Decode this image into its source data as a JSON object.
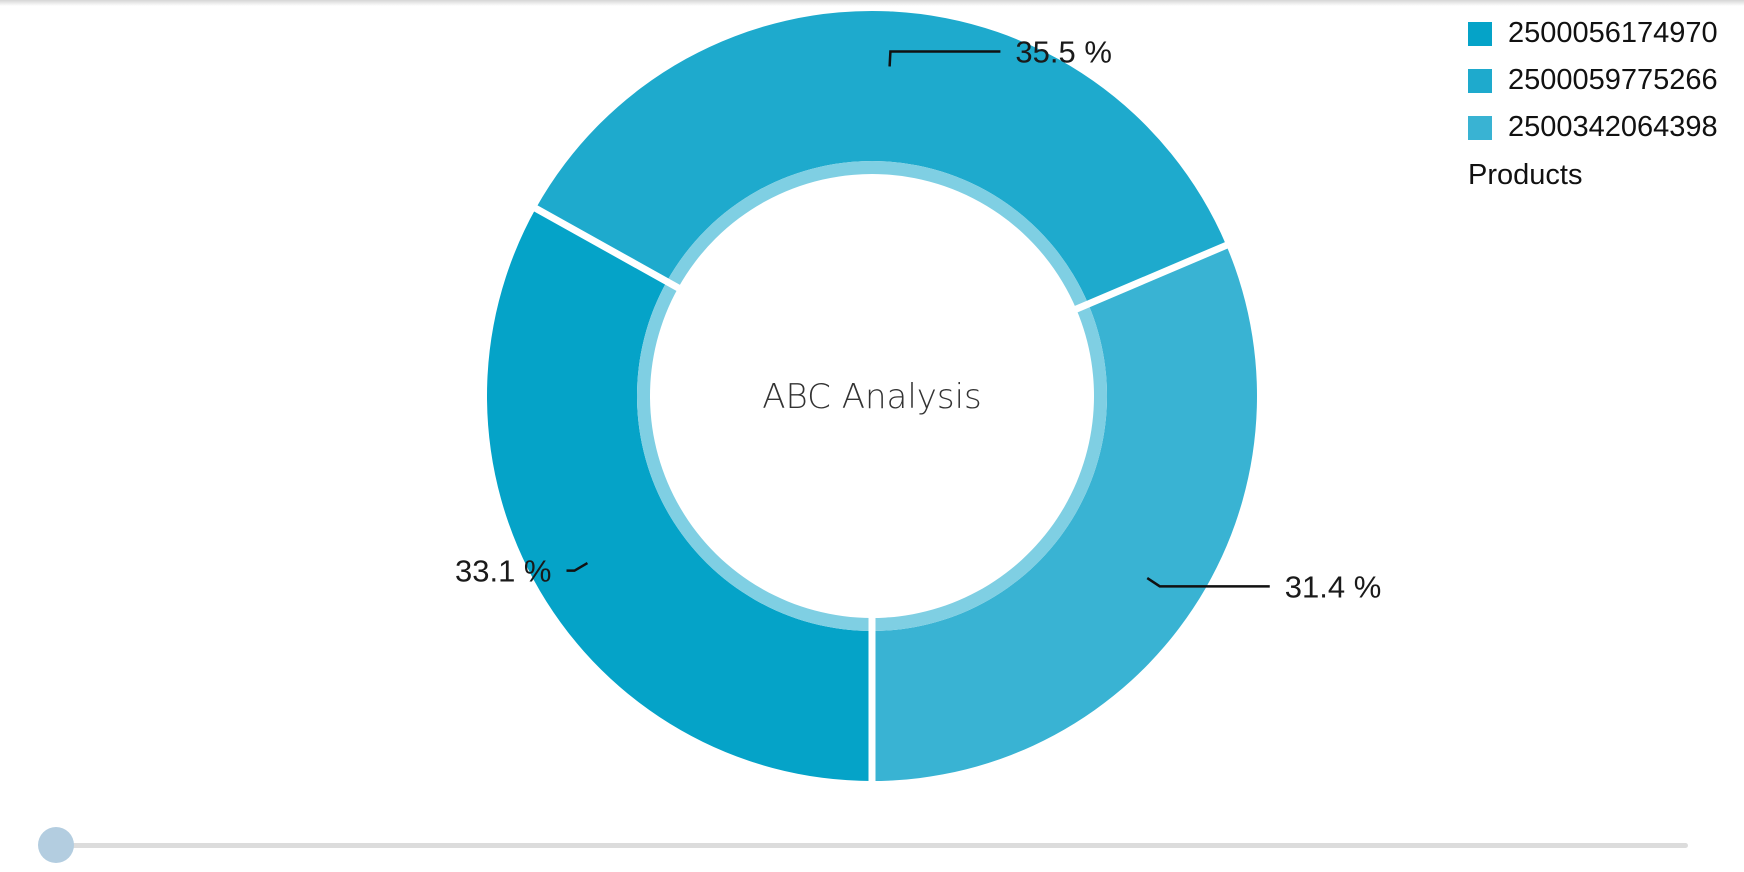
{
  "chart_data": {
    "type": "pie",
    "variant": "donut",
    "center_title": "ABC Analysis",
    "legend_title": "Products",
    "legend_placement": "top-right",
    "slices": [
      {
        "name": "2500056174970",
        "value": 33.1,
        "label": "33.1 %",
        "color": "#05a3c8"
      },
      {
        "name": "2500059775266",
        "value": 35.5,
        "label": "35.5 %",
        "color": "#1eaacd"
      },
      {
        "name": "2500342064398",
        "value": 31.4,
        "label": "31.4 %",
        "color": "#39b3d3"
      }
    ],
    "inner_ring_color": "#7fcfe3"
  },
  "range_slider": {
    "value": 0
  }
}
